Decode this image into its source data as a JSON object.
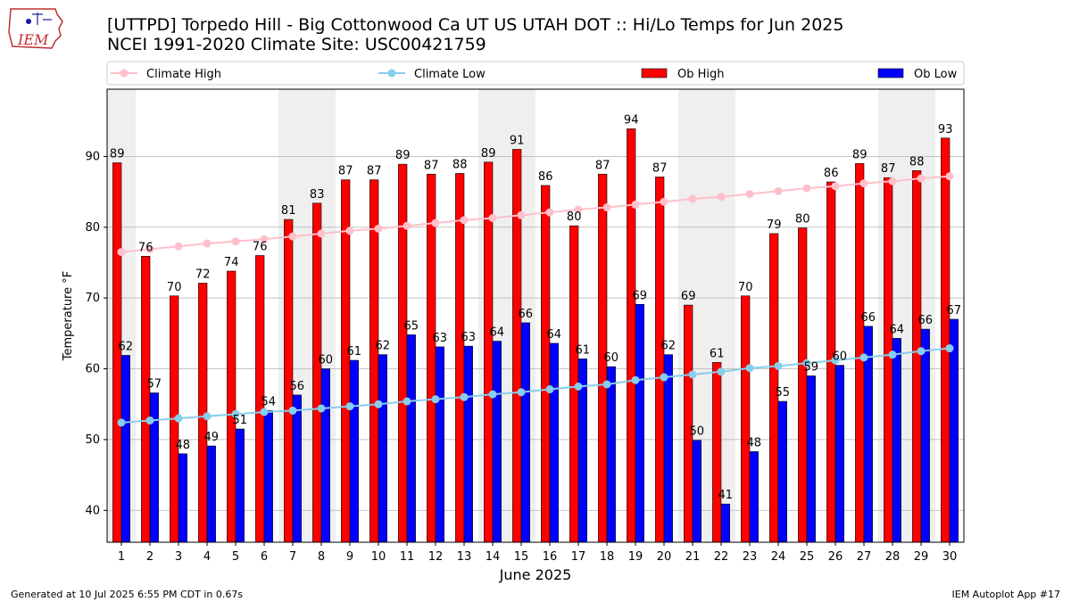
{
  "header": {
    "logo_text": "IEM",
    "title": "[UTTPD] Torpedo Hill - Big Cottonwood Ca UT US UTAH DOT :: Hi/Lo Temps for Jun 2025",
    "subtitle": "NCEI 1991-2020 Climate Site: USC00421759"
  },
  "footer": {
    "generated": "Generated at 10 Jul 2025 6:55 PM CDT in 0.67s",
    "app": "IEM Autoplot App #17"
  },
  "colors": {
    "ob_high": "#ff0000",
    "ob_low": "#0000ff",
    "climate_high": "#ffc0cb",
    "climate_low": "#87ceeb",
    "weekend_shade": "#efefef"
  },
  "chart_data": {
    "type": "bar",
    "xlabel": "June 2025",
    "ylabel": "Temperature °F",
    "ylim": [
      35.5,
      99.5
    ],
    "yticks": [
      40,
      50,
      60,
      70,
      80,
      90
    ],
    "grid": true,
    "legend_position": "top",
    "categories": [
      "1",
      "2",
      "3",
      "4",
      "5",
      "6",
      "7",
      "8",
      "9",
      "10",
      "11",
      "12",
      "13",
      "14",
      "15",
      "16",
      "17",
      "18",
      "19",
      "20",
      "21",
      "22",
      "23",
      "24",
      "25",
      "26",
      "27",
      "28",
      "29",
      "30"
    ],
    "weekend_days": [
      1,
      7,
      8,
      14,
      15,
      21,
      22,
      28,
      29
    ],
    "series": [
      {
        "name": "Ob High",
        "kind": "bar",
        "values": [
          89,
          76,
          70,
          72,
          74,
          76,
          81,
          83,
          87,
          87,
          89,
          87,
          88,
          89,
          91,
          86,
          80,
          87,
          94,
          87,
          69,
          61,
          70,
          79,
          80,
          86,
          89,
          87,
          88,
          93
        ],
        "plot_values": [
          89.1,
          75.9,
          70.3,
          72.1,
          73.8,
          76.0,
          81.1,
          83.4,
          86.7,
          86.7,
          88.9,
          87.5,
          87.6,
          89.2,
          91.0,
          85.9,
          80.2,
          87.5,
          93.9,
          87.1,
          69.0,
          60.9,
          70.3,
          79.1,
          79.9,
          86.4,
          89.0,
          87.0,
          88.0,
          92.6
        ]
      },
      {
        "name": "Ob Low",
        "kind": "bar",
        "values": [
          62,
          57,
          48,
          49,
          51,
          54,
          56,
          60,
          61,
          62,
          65,
          63,
          63,
          64,
          66,
          64,
          61,
          60,
          69,
          62,
          50,
          41,
          48,
          55,
          59,
          60,
          66,
          64,
          66,
          67
        ],
        "plot_values": [
          61.9,
          56.6,
          48.0,
          49.1,
          51.5,
          54.1,
          56.3,
          60.0,
          61.2,
          62.0,
          64.8,
          63.1,
          63.2,
          63.9,
          66.5,
          63.6,
          61.4,
          60.3,
          69.1,
          62.0,
          49.9,
          40.9,
          48.3,
          55.4,
          59.0,
          60.5,
          66.0,
          64.3,
          65.6,
          67.0
        ]
      },
      {
        "name": "Climate High",
        "kind": "line",
        "values": [
          76.5,
          76.9,
          77.3,
          77.7,
          78.0,
          78.3,
          78.7,
          79.1,
          79.5,
          79.8,
          80.2,
          80.6,
          81.0,
          81.3,
          81.7,
          82.1,
          82.5,
          82.8,
          83.2,
          83.6,
          84.0,
          84.3,
          84.7,
          85.1,
          85.5,
          85.8,
          86.2,
          86.5,
          86.9,
          87.2
        ]
      },
      {
        "name": "Climate Low",
        "kind": "line",
        "values": [
          52.4,
          52.7,
          53.0,
          53.3,
          53.6,
          53.9,
          54.1,
          54.4,
          54.7,
          55.0,
          55.4,
          55.7,
          56.0,
          56.4,
          56.7,
          57.1,
          57.5,
          57.8,
          58.4,
          58.8,
          59.2,
          59.6,
          60.1,
          60.4,
          60.8,
          61.2,
          61.6,
          62.0,
          62.5,
          62.9
        ]
      }
    ]
  }
}
